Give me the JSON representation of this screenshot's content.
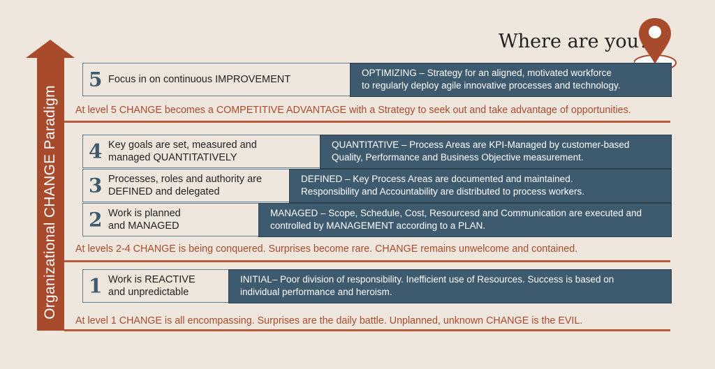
{
  "colors": {
    "background": "#efe7dd",
    "accent": "#a84a2c",
    "panel": "#3d5a6e"
  },
  "axis_label": "Organizational CHANGE Paradigm",
  "title": "Where are you?",
  "icons": {
    "arrow": "up-arrow-icon",
    "pin": "location-pin-icon"
  },
  "levels": [
    {
      "number": "5",
      "left": "Focus in on continuous IMPROVEMENT",
      "right": "OPTIMIZING – Strategy for an aligned, motivated workforce\nto regularly deploy agile innovative processes and technology."
    },
    {
      "number": "4",
      "left": "Key goals are set, measured and\nmanaged QUANTITATIVELY",
      "right": "QUANTITATIVE – Process Areas are KPI-Managed by customer-based\nQuality, Performance and Business Objective measurement."
    },
    {
      "number": "3",
      "left": "Processes, roles and authority are\nDEFINED and delegated",
      "right": "DEFINED – Key Process Areas are documented and maintained.\nResponsibility and Accountability are distributed to process workers."
    },
    {
      "number": "2",
      "left": "Work is planned\nand MANAGED",
      "right": "MANAGED – Scope, Schedule, Cost, Resourcesd and Communication are executed and\ncontrolled by MANAGEMENT according to a PLAN."
    },
    {
      "number": "1",
      "left": "Work is REACTIVE\nand unpredictable",
      "right": "INITIAL– Poor division of responsibility. Inefficient use of Resources. Success is based on\nindividual performance and heroism."
    }
  ],
  "notes": {
    "level5": "At level 5 CHANGE becomes a COMPETITIVE ADVANTAGE with a Strategy to seek out and take advantage of opportunities.",
    "levels2to4": "At levels 2-4 CHANGE is being conquered. Surprises become rare. CHANGE remains unwelcome and contained.",
    "level1": "At level 1 CHANGE is all encompassing. Surprises are the daily battle. Unplanned, unknown CHANGE is the EVIL."
  }
}
